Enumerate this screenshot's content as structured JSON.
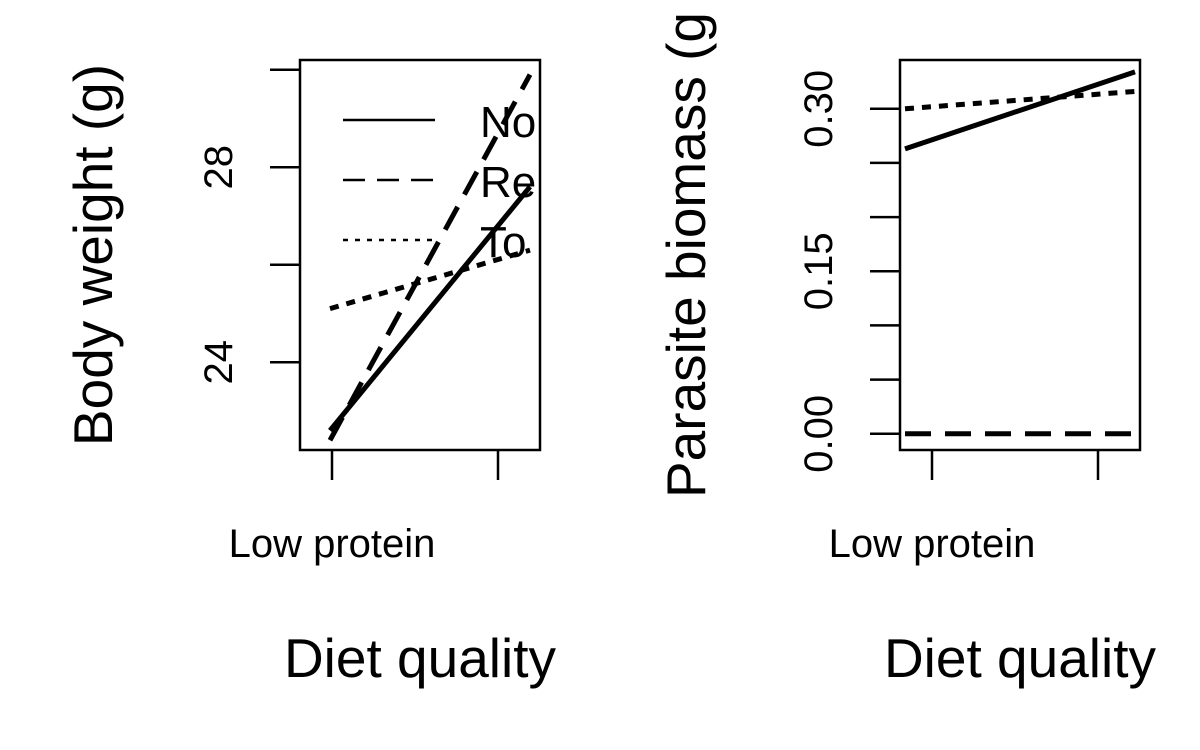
{
  "chart_data": [
    {
      "type": "line",
      "ylabel": "Body weight (g)",
      "xlabel": "Diet quality",
      "x_tick_labels": [
        "Low protein",
        ""
      ],
      "y_ticks": [
        24,
        26,
        28,
        30
      ],
      "y_tick_labels": [
        "24",
        "",
        "28",
        ""
      ],
      "ylim": [
        22.2,
        30.2
      ],
      "legend": {
        "position": "top-left",
        "entries": [
          "No",
          "Re",
          "To"
        ]
      },
      "series": [
        {
          "name": "No",
          "line_style": "solid",
          "x": [
            0,
            1
          ],
          "values": [
            22.6,
            27.6
          ]
        },
        {
          "name": "Re",
          "line_style": "dashed",
          "x": [
            0,
            1
          ],
          "values": [
            22.4,
            29.9
          ]
        },
        {
          "name": "To",
          "line_style": "dotted",
          "x": [
            0,
            1
          ],
          "values": [
            25.1,
            26.3
          ]
        }
      ]
    },
    {
      "type": "line",
      "ylabel": "Parasite biomass (g",
      "xlabel": "Diet quality",
      "x_tick_labels": [
        "Low protein",
        ""
      ],
      "y_ticks": [
        0.0,
        0.05,
        0.1,
        0.15,
        0.2,
        0.25,
        0.3
      ],
      "y_tick_labels": [
        "0.00",
        "",
        "",
        "0.15",
        "",
        "",
        "0.30"
      ],
      "ylim": [
        -0.015,
        0.345
      ],
      "series": [
        {
          "line_style": "solid",
          "x": [
            0,
            1
          ],
          "values": [
            0.263,
            0.334
          ]
        },
        {
          "line_style": "dashed",
          "x": [
            0,
            1
          ],
          "values": [
            0.0,
            0.0
          ]
        },
        {
          "line_style": "dotted",
          "x": [
            0,
            1
          ],
          "values": [
            0.3,
            0.316
          ]
        }
      ]
    }
  ]
}
